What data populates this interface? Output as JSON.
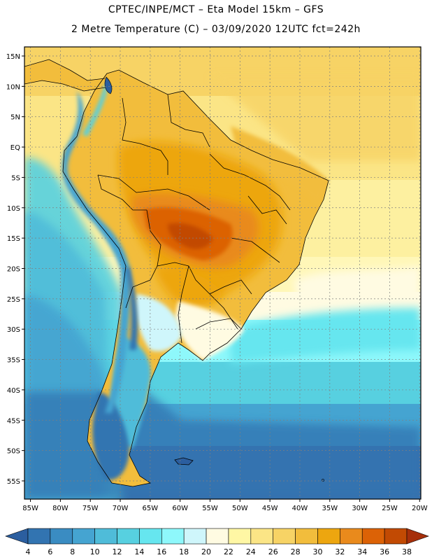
{
  "header": {
    "title_line1": "CPTEC/INPE/MCT –  Eta Model 15km – GFS",
    "title_line2": "2 Metre Temperature (C) – 03/09/2020 12UTC fct=242h"
  },
  "map": {
    "lat_ticks": [
      "15N",
      "10N",
      "5N",
      "EQ",
      "5S",
      "10S",
      "15S",
      "20S",
      "25S",
      "30S",
      "35S",
      "40S",
      "45S",
      "50S",
      "55S"
    ],
    "lat_values": [
      15,
      10,
      5,
      0,
      -5,
      -10,
      -15,
      -20,
      -25,
      -30,
      -35,
      -40,
      -45,
      -50,
      -55
    ],
    "lon_ticks": [
      "85W",
      "80W",
      "75W",
      "70W",
      "65W",
      "60W",
      "55W",
      "50W",
      "45W",
      "40W",
      "35W",
      "30W",
      "25W",
      "20W"
    ],
    "lon_values": [
      -85,
      -80,
      -75,
      -70,
      -65,
      -60,
      -55,
      -50,
      -45,
      -40,
      -35,
      -30,
      -25,
      -20
    ],
    "extent": {
      "lon_min": -86,
      "lon_max": -19.8,
      "lat_min": -58,
      "lat_max": 16.5
    }
  },
  "legend": {
    "labels": [
      "4",
      "6",
      "8",
      "10",
      "12",
      "14",
      "16",
      "18",
      "20",
      "22",
      "24",
      "26",
      "28",
      "30",
      "32",
      "34",
      "36",
      "38"
    ],
    "colors": [
      "#2b5e9f",
      "#3274b1",
      "#3a8cc2",
      "#45a4d1",
      "#4fbcd9",
      "#57d0e0",
      "#66e6ef",
      "#8ef8fb",
      "#cff6fb",
      "#fffbe2",
      "#fff7a4",
      "#fbe586",
      "#f7d365",
      "#f2bd3c",
      "#eda60f",
      "#e98a1c",
      "#dc6206",
      "#c24a03",
      "#a62f0a"
    ]
  }
}
